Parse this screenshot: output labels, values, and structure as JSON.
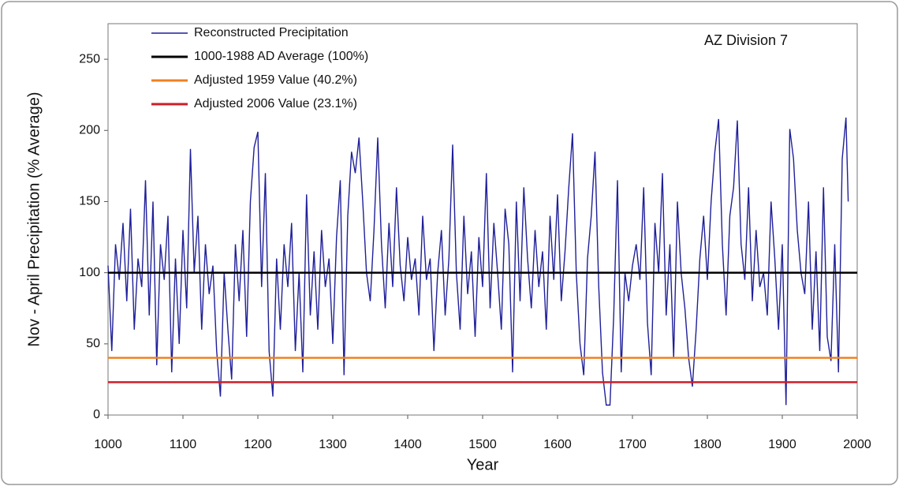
{
  "chart_data": {
    "type": "line",
    "annotation": "AZ Division 7",
    "xlabel": "Year",
    "ylabel": "Nov - April Precipitation (% Average)",
    "xlim": [
      1000,
      2000
    ],
    "xticks": [
      1000,
      1100,
      1200,
      1300,
      1400,
      1500,
      1600,
      1700,
      1800,
      1900,
      2000
    ],
    "ylim": [
      0,
      275
    ],
    "yticks": [
      0,
      50,
      100,
      150,
      200,
      250
    ],
    "legend": "upper left",
    "series": [
      {
        "name": "Reconstructed Precipitation",
        "color": "#1f1f9a",
        "x": [
          1000,
          1005,
          1010,
          1015,
          1020,
          1025,
          1030,
          1035,
          1040,
          1045,
          1050,
          1055,
          1060,
          1065,
          1070,
          1075,
          1080,
          1085,
          1090,
          1095,
          1100,
          1105,
          1110,
          1115,
          1120,
          1125,
          1130,
          1135,
          1140,
          1145,
          1150,
          1155,
          1160,
          1165,
          1170,
          1175,
          1180,
          1185,
          1190,
          1195,
          1200,
          1205,
          1210,
          1215,
          1220,
          1225,
          1230,
          1235,
          1240,
          1245,
          1250,
          1255,
          1260,
          1265,
          1270,
          1275,
          1280,
          1285,
          1290,
          1295,
          1300,
          1305,
          1310,
          1315,
          1320,
          1325,
          1330,
          1335,
          1340,
          1345,
          1350,
          1355,
          1360,
          1365,
          1370,
          1375,
          1380,
          1385,
          1390,
          1395,
          1400,
          1405,
          1410,
          1415,
          1420,
          1425,
          1430,
          1435,
          1440,
          1445,
          1450,
          1455,
          1460,
          1465,
          1470,
          1475,
          1480,
          1485,
          1490,
          1495,
          1500,
          1505,
          1510,
          1515,
          1520,
          1525,
          1530,
          1535,
          1540,
          1545,
          1550,
          1555,
          1560,
          1565,
          1570,
          1575,
          1580,
          1585,
          1590,
          1595,
          1600,
          1605,
          1610,
          1615,
          1620,
          1625,
          1630,
          1635,
          1640,
          1645,
          1650,
          1655,
          1660,
          1665,
          1670,
          1675,
          1680,
          1685,
          1690,
          1695,
          1700,
          1705,
          1710,
          1715,
          1720,
          1725,
          1730,
          1735,
          1740,
          1745,
          1750,
          1755,
          1760,
          1765,
          1770,
          1775,
          1780,
          1785,
          1790,
          1795,
          1800,
          1805,
          1810,
          1815,
          1820,
          1825,
          1830,
          1835,
          1840,
          1845,
          1850,
          1855,
          1860,
          1865,
          1870,
          1875,
          1880,
          1885,
          1890,
          1895,
          1900,
          1905,
          1910,
          1915,
          1920,
          1925,
          1930,
          1935,
          1940,
          1945,
          1950,
          1955,
          1960,
          1965,
          1970,
          1975,
          1980,
          1985,
          1988
        ],
        "values": [
          105,
          45,
          120,
          95,
          135,
          80,
          145,
          60,
          110,
          90,
          165,
          70,
          150,
          35,
          120,
          95,
          140,
          30,
          110,
          50,
          130,
          75,
          187,
          100,
          140,
          60,
          120,
          85,
          105,
          45,
          13,
          100,
          60,
          25,
          120,
          80,
          130,
          55,
          150,
          188,
          199,
          90,
          170,
          45,
          13,
          110,
          60,
          120,
          90,
          135,
          45,
          100,
          30,
          155,
          70,
          115,
          60,
          130,
          90,
          110,
          50,
          125,
          165,
          28,
          140,
          185,
          170,
          195,
          150,
          100,
          80,
          130,
          195,
          120,
          75,
          135,
          90,
          160,
          105,
          80,
          125,
          95,
          110,
          70,
          140,
          95,
          110,
          45,
          100,
          130,
          70,
          110,
          190,
          100,
          60,
          140,
          85,
          115,
          55,
          125,
          90,
          170,
          75,
          135,
          100,
          60,
          145,
          120,
          30,
          150,
          80,
          160,
          110,
          75,
          130,
          90,
          115,
          60,
          140,
          95,
          155,
          80,
          115,
          160,
          198,
          100,
          50,
          28,
          110,
          140,
          185,
          90,
          30,
          7,
          7,
          70,
          165,
          30,
          100,
          80,
          105,
          120,
          95,
          160,
          65,
          28,
          135,
          100,
          170,
          70,
          120,
          40,
          150,
          100,
          75,
          40,
          20,
          60,
          110,
          140,
          95,
          150,
          185,
          208,
          120,
          70,
          140,
          160,
          207,
          120,
          95,
          160,
          80,
          130,
          90,
          100,
          70,
          150,
          110,
          60,
          120,
          7,
          201,
          180,
          130,
          100,
          85,
          150,
          60,
          115,
          45,
          160,
          55,
          38,
          120,
          30,
          180,
          209,
          150
        ]
      },
      {
        "name": "1000-1988 AD Average (100%)",
        "color": "#000000",
        "x": [
          1000,
          2000
        ],
        "values": [
          100,
          100
        ]
      },
      {
        "name": "Adjusted 1959 Value  (40.2%)",
        "color": "#f08020",
        "x": [
          1000,
          2000
        ],
        "values": [
          40.2,
          40.2
        ]
      },
      {
        "name": "Adjusted 2006 Value  (23.1%)",
        "color": "#cc1f28",
        "x": [
          1000,
          2000
        ],
        "values": [
          23.1,
          23.1
        ]
      }
    ]
  }
}
